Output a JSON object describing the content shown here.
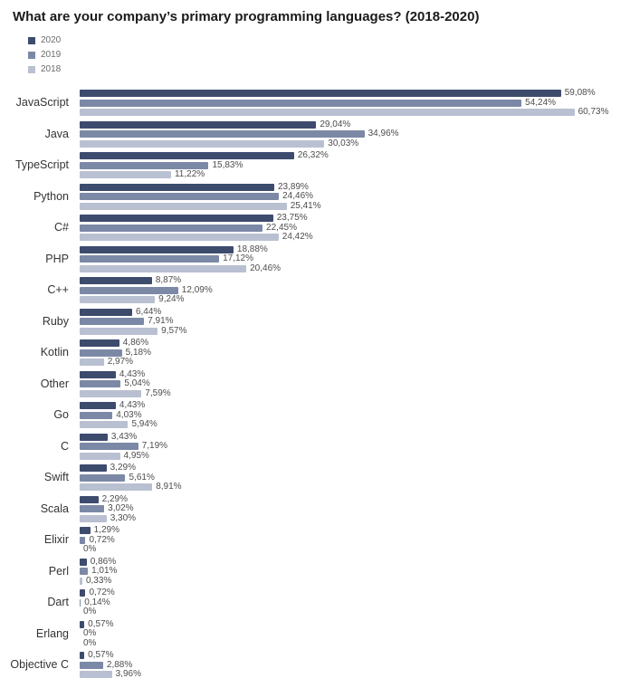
{
  "title": "What are your company’s primary programming languages? (2018-2020)",
  "legend": [
    {
      "label": "2020",
      "color": "#3d4b6d"
    },
    {
      "label": "2019",
      "color": "#7c89a6"
    },
    {
      "label": "2018",
      "color": "#b9c0d1"
    }
  ],
  "chart_data": {
    "type": "bar",
    "orientation": "horizontal",
    "title": "What are your company’s primary programming languages? (2018-2020)",
    "xlabel": "",
    "ylabel": "",
    "xlim": [
      0,
      66
    ],
    "grid": false,
    "legend_position": "top-left",
    "value_label_format": "comma-decimal percent",
    "categories": [
      "JavaScript",
      "Java",
      "TypeScript",
      "Python",
      "C#",
      "PHP",
      "C++",
      "Ruby",
      "Kotlin",
      "Other",
      "Go",
      "C",
      "Swift",
      "Scala",
      "Elixir",
      "Perl",
      "Dart",
      "Erlang",
      "Objective C"
    ],
    "series": [
      {
        "name": "2020",
        "color": "#3d4b6d",
        "values": [
          59.08,
          29.04,
          26.32,
          23.89,
          23.75,
          18.88,
          8.87,
          6.44,
          4.86,
          4.43,
          4.43,
          3.43,
          3.29,
          2.29,
          1.29,
          0.86,
          0.72,
          0.57,
          0.57
        ]
      },
      {
        "name": "2019",
        "color": "#7c89a6",
        "values": [
          54.24,
          34.96,
          15.83,
          24.46,
          22.45,
          17.12,
          12.09,
          7.91,
          5.18,
          5.04,
          4.03,
          7.19,
          5.61,
          3.02,
          0.72,
          1.01,
          0.14,
          0,
          2.88
        ]
      },
      {
        "name": "2018",
        "color": "#b9c0d1",
        "values": [
          60.73,
          30.03,
          11.22,
          25.41,
          24.42,
          20.46,
          9.24,
          9.57,
          2.97,
          7.59,
          5.94,
          4.95,
          8.91,
          3.3,
          0,
          0.33,
          0,
          0,
          3.96
        ]
      }
    ],
    "value_labels": [
      [
        "59,08%",
        "29,04%",
        "26,32%",
        "23,89%",
        "23,75%",
        "18,88%",
        "8,87%",
        "6,44%",
        "4,86%",
        "4,43%",
        "4,43%",
        "3,43%",
        "3,29%",
        "2,29%",
        "1,29%",
        "0,86%",
        "0,72%",
        "0,57%",
        "0,57%"
      ],
      [
        "54,24%",
        "34,96%",
        "15,83%",
        "24,46%",
        "22,45%",
        "17,12%",
        "12,09%",
        "7,91%",
        "5,18%",
        "5,04%",
        "4,03%",
        "7,19%",
        "5,61%",
        "3,02%",
        "0,72%",
        "1,01%",
        "0,14%",
        "0%",
        "2,88%"
      ],
      [
        "60,73%",
        "30,03%",
        "11,22%",
        "25,41%",
        "24,42%",
        "20,46%",
        "9,24%",
        "9,57%",
        "2,97%",
        "7,59%",
        "5,94%",
        "4,95%",
        "8,91%",
        "3,30%",
        "0%",
        "0,33%",
        "0%",
        "0%",
        "3,96%"
      ]
    ]
  }
}
